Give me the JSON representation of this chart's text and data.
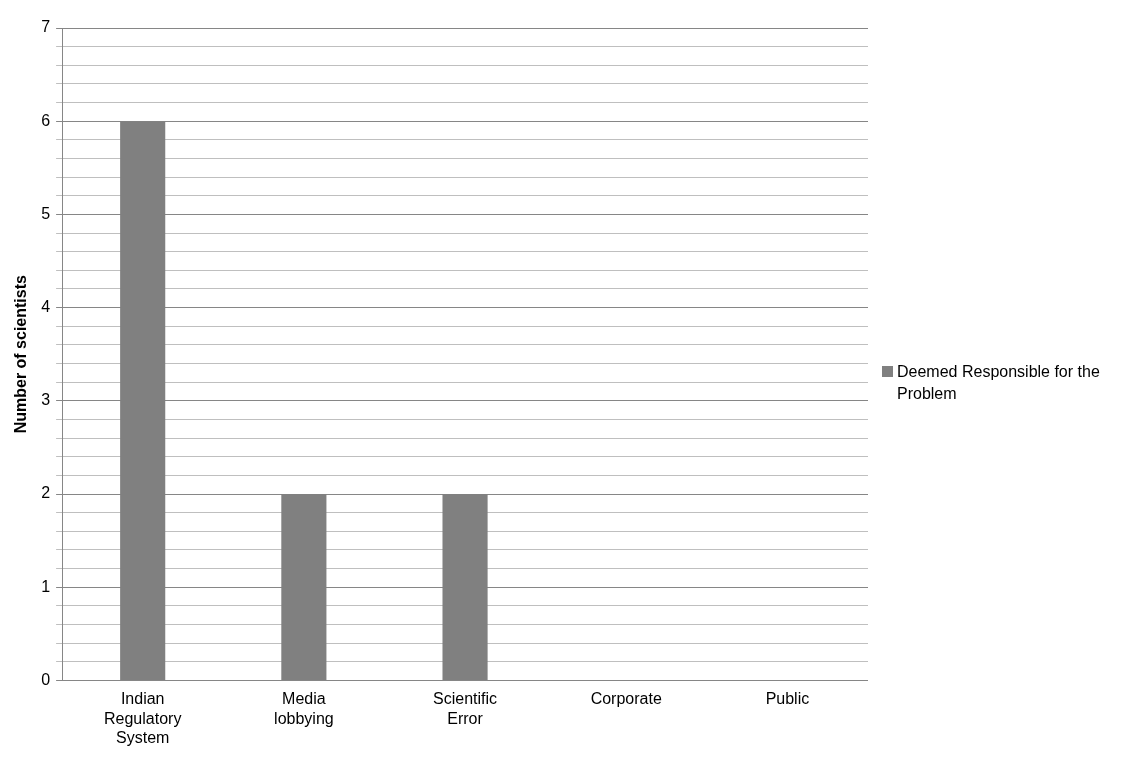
{
  "chart_data": {
    "type": "bar",
    "ylabel": "Number of scientists",
    "categories": [
      "Indian Regulatory System",
      "Media lobbying",
      "Scientific Error",
      "Corporate",
      "Public"
    ],
    "series": [
      {
        "name": "Deemed Responsible for the Problem",
        "color": "#808080",
        "values": [
          6,
          2,
          2,
          0,
          0
        ]
      }
    ],
    "ylim": [
      0,
      7
    ],
    "yticks": [
      0,
      {
        "value": 0.2,
        "label": null
      },
      {
        "value": 0.4,
        "label": null
      },
      {
        "value": 0.6,
        "label": null
      },
      {
        "value": 0.8,
        "label": null
      },
      1,
      {
        "value": 1.2,
        "label": null
      },
      {
        "value": 1.4,
        "label": null
      },
      {
        "value": 1.6,
        "label": null
      },
      {
        "value": 1.8,
        "label": null
      },
      2,
      {
        "value": 2.2,
        "label": null
      },
      {
        "value": 2.4,
        "label": null
      },
      {
        "value": 2.6,
        "label": null
      },
      {
        "value": 2.8,
        "label": null
      },
      3,
      {
        "value": 3.2,
        "label": null
      },
      {
        "value": 3.4,
        "label": null
      },
      {
        "value": 3.6,
        "label": null
      },
      {
        "value": 3.8,
        "label": null
      },
      4,
      {
        "value": 4.2,
        "label": null
      },
      {
        "value": 4.4,
        "label": null
      },
      {
        "value": 4.6,
        "label": null
      },
      {
        "value": 4.8,
        "label": null
      },
      5,
      {
        "value": 5.2,
        "label": null
      },
      {
        "value": 5.4,
        "label": null
      },
      {
        "value": 5.6,
        "label": null
      },
      {
        "value": 5.8,
        "label": null
      },
      6,
      {
        "value": 6.2,
        "label": null
      },
      {
        "value": 6.4,
        "label": null
      },
      {
        "value": 6.6,
        "label": null
      },
      {
        "value": 6.8,
        "label": null
      },
      7
    ],
    "grid": "y",
    "legend": "right"
  }
}
